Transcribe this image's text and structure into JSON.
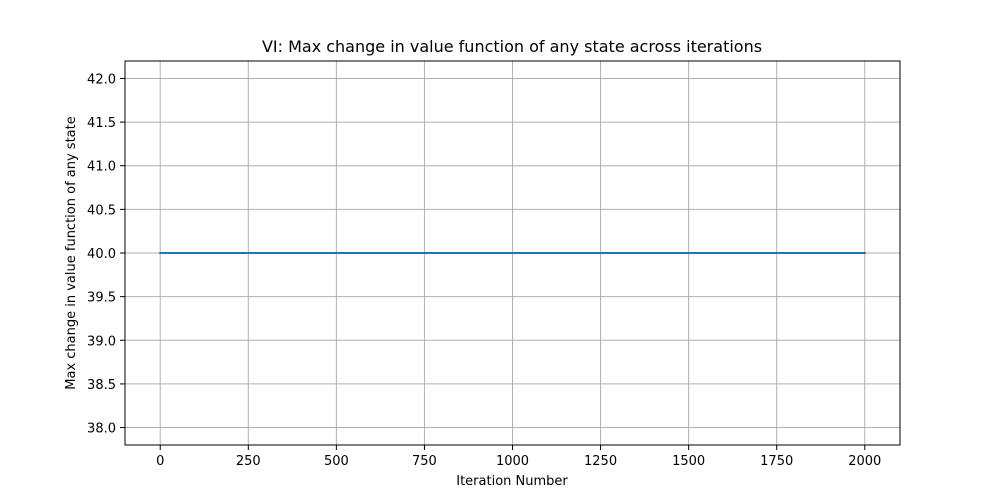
{
  "chart_data": {
    "type": "line",
    "title": "VI: Max change in value function of any state across iterations",
    "xlabel": "Iteration Number",
    "ylabel": "Max change in value function of any state",
    "xlim": [
      -100,
      2100
    ],
    "ylim": [
      37.8,
      42.2
    ],
    "x_ticks": [
      0,
      250,
      500,
      750,
      1000,
      1250,
      1500,
      1750,
      2000
    ],
    "y_ticks": [
      38.0,
      38.5,
      39.0,
      39.5,
      40.0,
      40.5,
      41.0,
      41.5,
      42.0
    ],
    "x_tick_labels": [
      "0",
      "250",
      "500",
      "750",
      "1000",
      "1250",
      "1500",
      "1750",
      "2000"
    ],
    "y_tick_labels": [
      "38.0",
      "38.5",
      "39.0",
      "39.5",
      "40.0",
      "40.5",
      "41.0",
      "41.5",
      "42.0"
    ],
    "grid": true,
    "series": [
      {
        "color": "#1f77b4",
        "points": [
          [
            0,
            40.0
          ],
          [
            2000,
            40.0
          ]
        ]
      }
    ]
  }
}
